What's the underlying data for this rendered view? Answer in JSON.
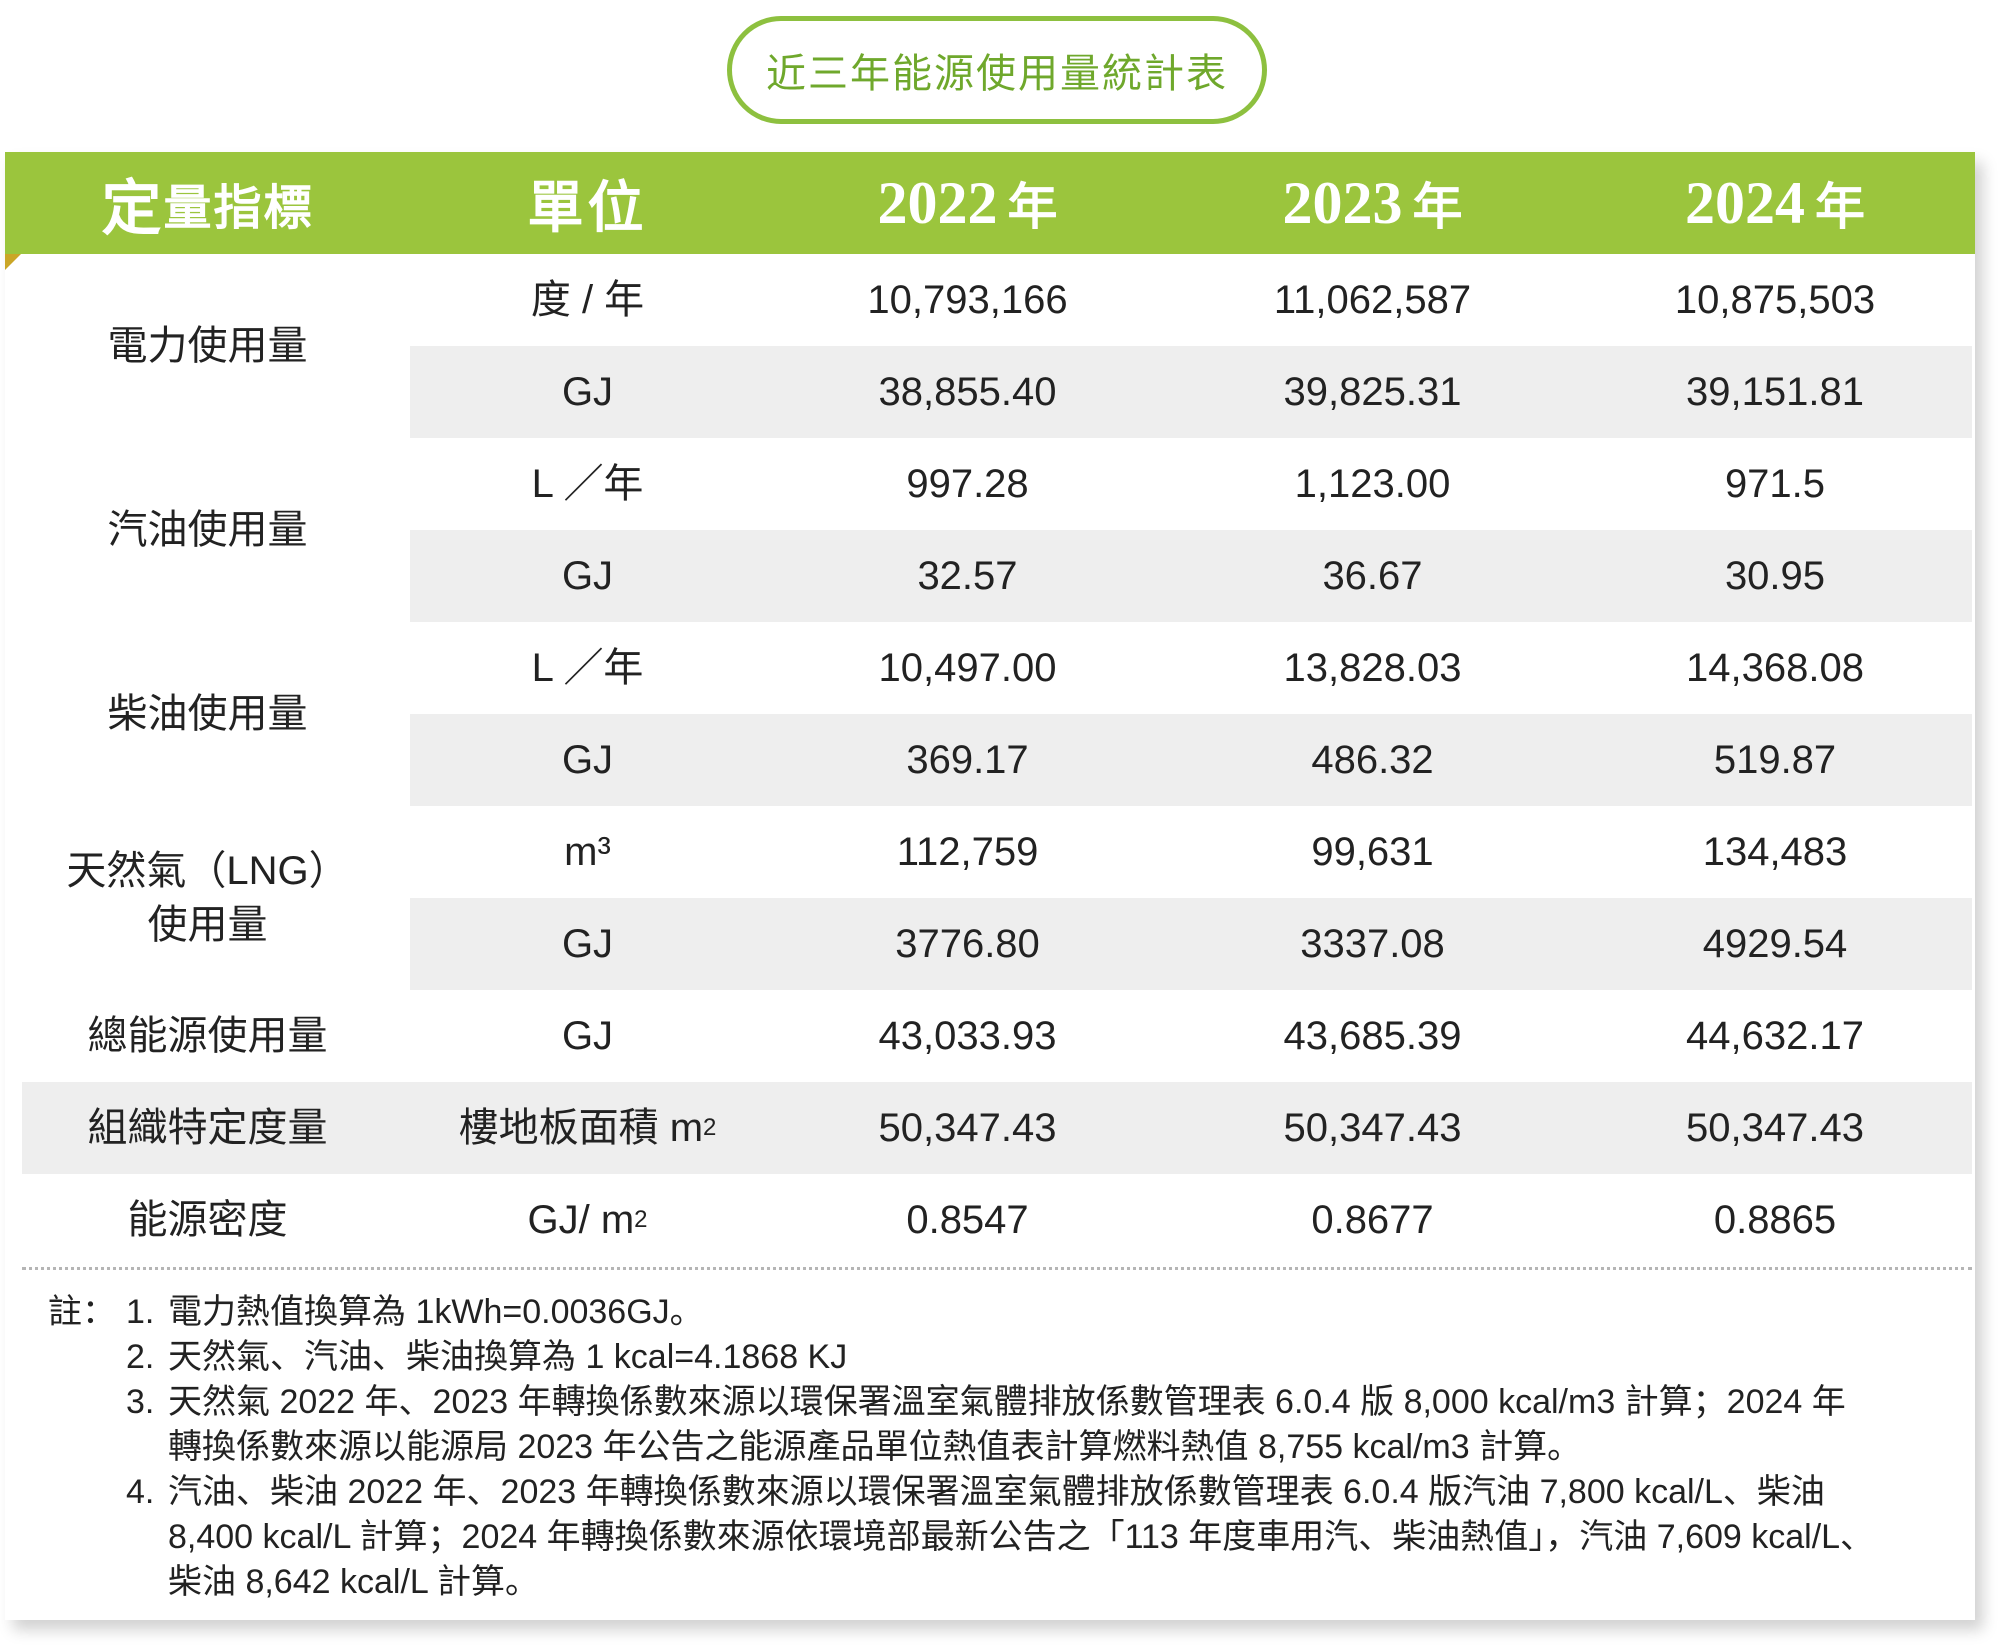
{
  "title": "近三年能源使用量統計表",
  "header": {
    "indicator_first": "定",
    "indicator_rest": "量指標",
    "unit": "單位",
    "years": [
      {
        "year": "2022",
        "suffix": "年"
      },
      {
        "year": "2023",
        "suffix": "年"
      },
      {
        "year": "2024",
        "suffix": "年"
      }
    ]
  },
  "rows": [
    {
      "unit": "度 / 年",
      "values": [
        "10,793,166",
        "11,062,587",
        "10,875,503"
      ]
    },
    {
      "unit": "GJ",
      "values": [
        "38,855.40",
        "39,825.31",
        "39,151.81"
      ]
    },
    {
      "unit": "L ／年",
      "values": [
        "997.28",
        "1,123.00",
        "971.5"
      ]
    },
    {
      "unit": "GJ",
      "values": [
        "32.57",
        "36.67",
        "30.95"
      ]
    },
    {
      "unit": "L ／年",
      "values": [
        "10,497.00",
        "13,828.03",
        "14,368.08"
      ]
    },
    {
      "unit": "GJ",
      "values": [
        "369.17",
        "486.32",
        "519.87"
      ]
    },
    {
      "unit": "m³",
      "values": [
        "112,759",
        "99,631",
        "134,483"
      ]
    },
    {
      "unit": "GJ",
      "values": [
        "3776.80",
        "3337.08",
        "4929.54"
      ]
    },
    {
      "unit": "GJ",
      "values": [
        "43,033.93",
        "43,685.39",
        "44,632.17"
      ]
    },
    {
      "unit": "樓地板面積 m",
      "sup": "2",
      "values": [
        "50,347.43",
        "50,347.43",
        "50,347.43"
      ]
    },
    {
      "unit": "GJ/ m",
      "sup": "2",
      "values": [
        "0.8547",
        "0.8677",
        "0.8865"
      ]
    }
  ],
  "indicators": [
    {
      "line1": "電力使用量",
      "line2": ""
    },
    {
      "line1": "汽油使用量",
      "line2": ""
    },
    {
      "line1": "柴油使用量",
      "line2": ""
    },
    {
      "line1": "天然氣（LNG）",
      "line2": "使用量"
    },
    {
      "line1": "總能源使用量",
      "line2": ""
    },
    {
      "line1": "組織特定度量",
      "line2": ""
    },
    {
      "line1": "能源密度",
      "line2": ""
    }
  ],
  "notes": {
    "label": "註：",
    "items": [
      {
        "num": "1.",
        "lines": [
          "電力熱值換算為 1kWh=0.0036GJ。"
        ]
      },
      {
        "num": "2.",
        "lines": [
          "天然氣、汽油、柴油換算為 1 kcal=4.1868 KJ"
        ]
      },
      {
        "num": "3.",
        "lines": [
          "天然氣 2022 年、2023 年轉換係數來源以環保署溫室氣體排放係數管理表 6.0.4 版 8,000 kcal/m3 計算；2024 年",
          "轉換係數來源以能源局 2023 年公告之能源產品單位熱值表計算燃料熱值 8,755 kcal/m3 計算。"
        ]
      },
      {
        "num": "4.",
        "lines": [
          "汽油、柴油 2022 年、2023 年轉換係數來源以環保署溫室氣體排放係數管理表 6.0.4 版汽油 7,800 kcal/L、柴油",
          "8,400 kcal/L 計算；2024 年轉換係數來源依環境部最新公告之「113 年度車用汽、柴油熱值」，汽油 7,609 kcal/L、",
          "柴油 8,642 kcal/L 計算。"
        ]
      }
    ]
  }
}
